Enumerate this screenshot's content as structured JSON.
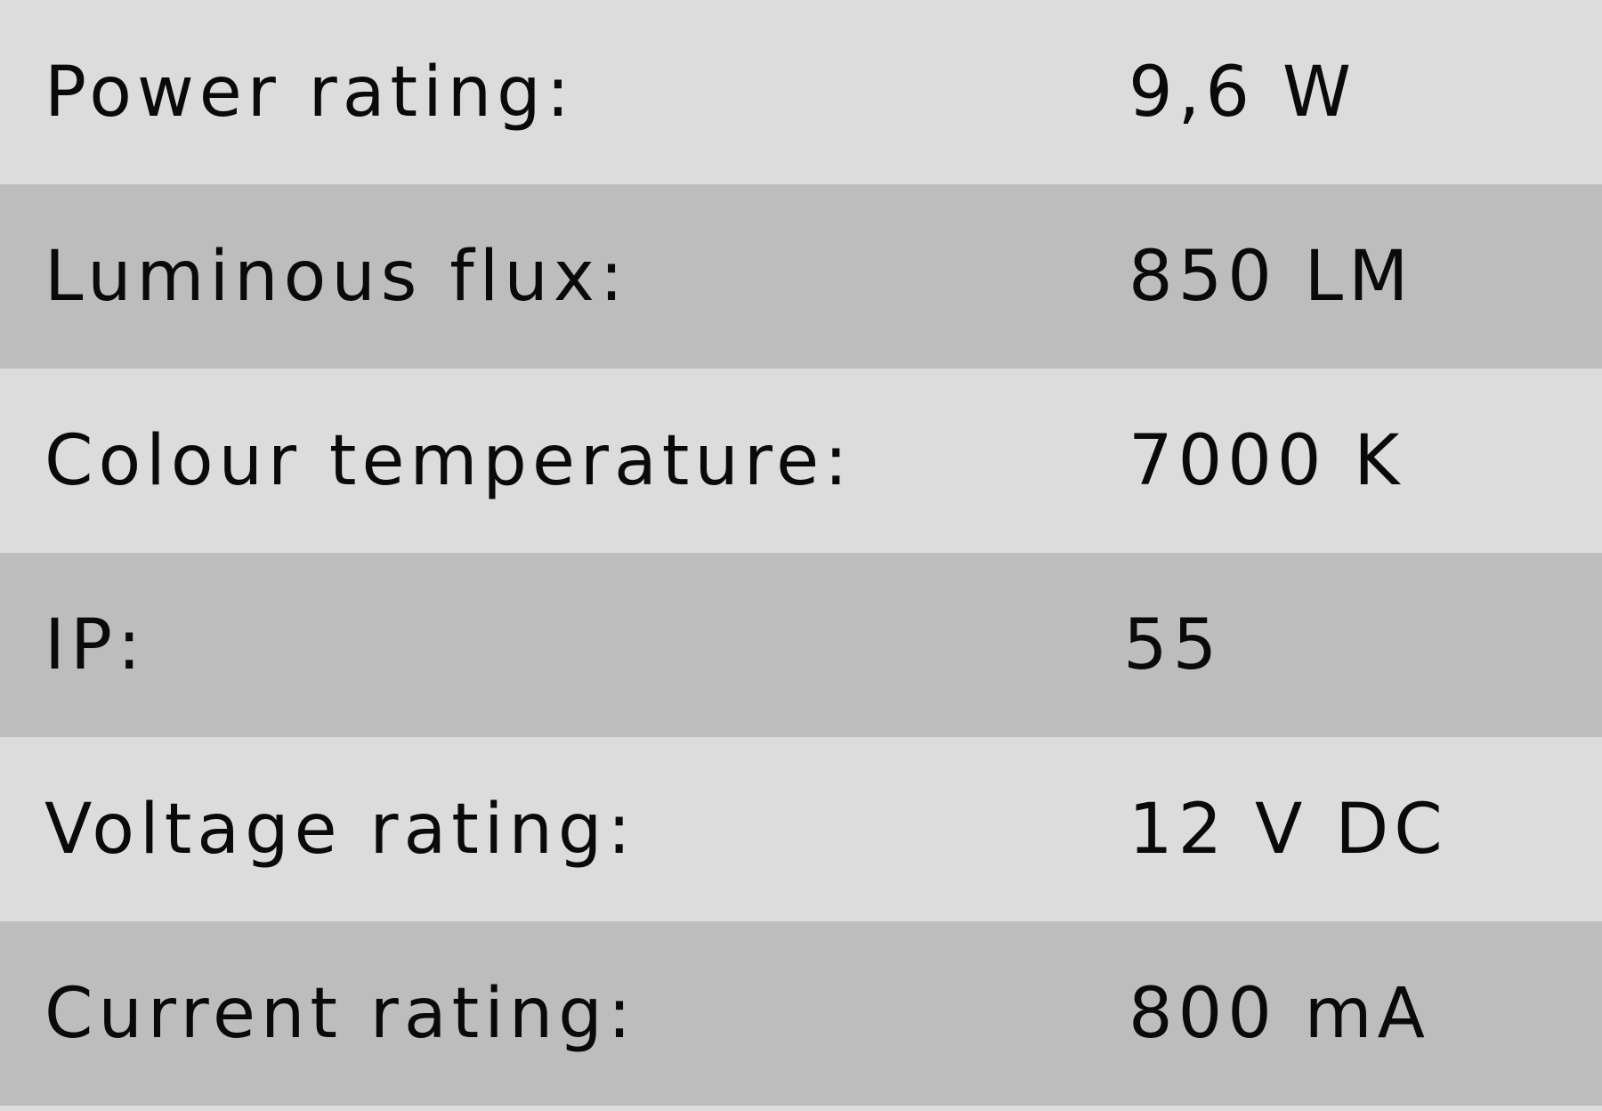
{
  "specs": [
    {
      "label": "Power rating:",
      "value": "9,6 W"
    },
    {
      "label": "Luminous flux:",
      "value": "850 LM"
    },
    {
      "label": "Colour temperature:",
      "value": "7000 K"
    },
    {
      "label": "IP:",
      "value": "55"
    },
    {
      "label": "Voltage rating:",
      "value": "12 V DC"
    },
    {
      "label": "Current rating:",
      "value": "800 mA"
    }
  ],
  "colors": {
    "row_light": "#dcdcdc",
    "row_dark": "#bdbdbd",
    "text": "#0a0a0a"
  }
}
